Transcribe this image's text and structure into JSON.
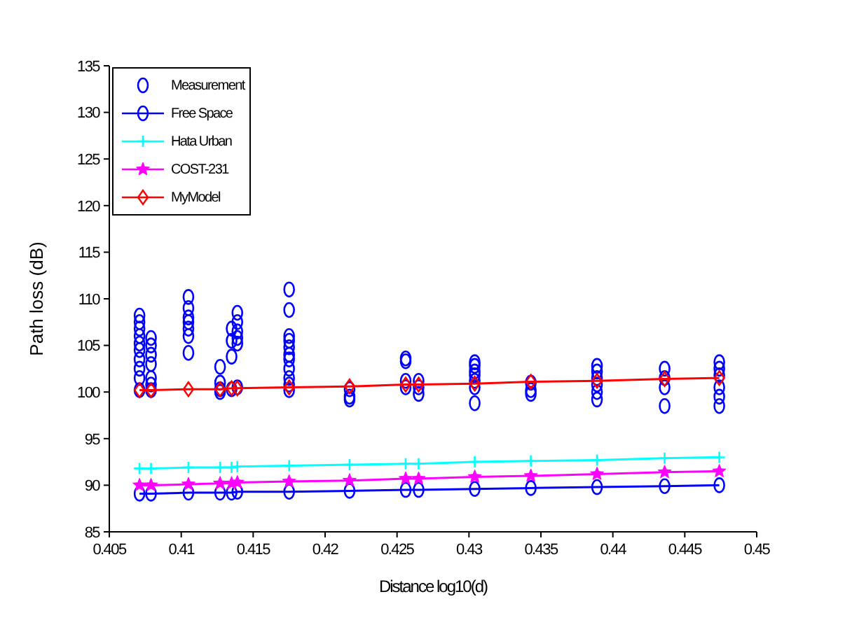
{
  "chart_data": {
    "type": "line",
    "xlabel": "Distance log10(d)",
    "ylabel": "Path loss (dB)",
    "xlim": [
      0.405,
      0.45
    ],
    "xticks": [
      0.405,
      0.41,
      0.415,
      0.42,
      0.425,
      0.43,
      0.435,
      0.44,
      0.445,
      0.45
    ],
    "ylim": [
      85,
      135
    ],
    "yticks": [
      85,
      90,
      95,
      100,
      105,
      110,
      115,
      120,
      125,
      130,
      135
    ],
    "grid": false,
    "legend": "top left",
    "series": [
      {
        "name": "Measurement",
        "type": "scatter",
        "marker": "circle",
        "color": "#0000ff",
        "x": [
          0.4071,
          0.4071,
          0.4071,
          0.4071,
          0.4071,
          0.4071,
          0.4071,
          0.4071,
          0.4071,
          0.4071,
          0.4079,
          0.4079,
          0.4079,
          0.4079,
          0.4079,
          0.4079,
          0.4079,
          0.4105,
          0.4105,
          0.4105,
          0.4105,
          0.4105,
          0.4105,
          0.4105,
          0.4127,
          0.4127,
          0.4127,
          0.4127,
          0.4135,
          0.4135,
          0.4135,
          0.4135,
          0.4139,
          0.4139,
          0.4139,
          0.4139,
          0.4139,
          0.4139,
          0.4175,
          0.4175,
          0.4175,
          0.4175,
          0.4175,
          0.4175,
          0.4175,
          0.4175,
          0.4175,
          0.4175,
          0.4175,
          0.4217,
          0.4217,
          0.4217,
          0.4256,
          0.4256,
          0.4256,
          0.4256,
          0.4265,
          0.4265,
          0.4265,
          0.4304,
          0.4304,
          0.4304,
          0.4304,
          0.4304,
          0.4304,
          0.4304,
          0.4343,
          0.4343,
          0.4343,
          0.4389,
          0.4389,
          0.4389,
          0.4389,
          0.4389,
          0.4389,
          0.4436,
          0.4436,
          0.4436,
          0.4436,
          0.4474,
          0.4474,
          0.4474,
          0.4474,
          0.4474,
          0.4474
        ],
        "values": [
          108.2,
          107.5,
          106.8,
          106,
          105.2,
          104.5,
          103.5,
          102.5,
          101.5,
          100.2,
          105.8,
          105,
          104,
          103,
          101.5,
          100.8,
          100.2,
          110.2,
          109,
          108,
          107.5,
          106.8,
          106,
          104.2,
          102.7,
          101,
          100.3,
          100,
          106.8,
          105.5,
          103.8,
          100.3,
          108.5,
          107.5,
          106.5,
          105.8,
          105.2,
          100.5,
          111,
          108.8,
          106,
          105.5,
          104.8,
          104,
          103.5,
          102.5,
          101.5,
          100.8,
          100.2,
          100.3,
          99.5,
          99.2,
          103.6,
          103.3,
          101.2,
          100.5,
          101.2,
          100.5,
          99.8,
          103.2,
          102.8,
          102.2,
          101.8,
          101.2,
          100.5,
          98.8,
          101,
          100.2,
          99.8,
          102.8,
          102.2,
          101.5,
          100.8,
          100,
          99.2,
          102.5,
          101.5,
          100.5,
          98.5,
          103.2,
          102.5,
          101.8,
          100.5,
          99.5,
          98.5
        ]
      },
      {
        "name": "Free Space",
        "marker": "circle",
        "color": "#0000ff",
        "x": [
          0.4071,
          0.4079,
          0.4105,
          0.4127,
          0.4135,
          0.4139,
          0.4175,
          0.4217,
          0.4256,
          0.4265,
          0.4304,
          0.4343,
          0.4389,
          0.4436,
          0.4474
        ],
        "values": [
          89.1,
          89.1,
          89.2,
          89.2,
          89.2,
          89.3,
          89.3,
          89.4,
          89.5,
          89.5,
          89.6,
          89.7,
          89.8,
          89.9,
          90.0
        ]
      },
      {
        "name": "Hata Urban",
        "marker": "cross",
        "color": "#00ffff",
        "x": [
          0.4071,
          0.4079,
          0.4105,
          0.4127,
          0.4135,
          0.4139,
          0.4175,
          0.4217,
          0.4256,
          0.4265,
          0.4304,
          0.4343,
          0.4389,
          0.4436,
          0.4474
        ],
        "values": [
          91.8,
          91.8,
          91.9,
          91.9,
          91.9,
          92.0,
          92.1,
          92.2,
          92.3,
          92.3,
          92.5,
          92.6,
          92.7,
          92.9,
          93.0
        ]
      },
      {
        "name": "COST-231",
        "marker": "star",
        "color": "#ff00ff",
        "x": [
          0.4071,
          0.4079,
          0.4105,
          0.4127,
          0.4135,
          0.4139,
          0.4175,
          0.4217,
          0.4256,
          0.4265,
          0.4304,
          0.4343,
          0.4389,
          0.4436,
          0.4474
        ],
        "values": [
          90.0,
          90.0,
          90.1,
          90.2,
          90.2,
          90.3,
          90.4,
          90.5,
          90.7,
          90.7,
          90.9,
          91.0,
          91.2,
          91.4,
          91.5
        ]
      },
      {
        "name": "MyModel",
        "marker": "diamond",
        "color": "#ff0000",
        "x": [
          0.4071,
          0.4079,
          0.4105,
          0.4127,
          0.4135,
          0.4139,
          0.4175,
          0.4217,
          0.4256,
          0.4265,
          0.4304,
          0.4343,
          0.4389,
          0.4436,
          0.4474
        ],
        "values": [
          100.2,
          100.2,
          100.3,
          100.3,
          100.4,
          100.4,
          100.5,
          100.6,
          100.8,
          100.8,
          100.9,
          101.1,
          101.2,
          101.4,
          101.5
        ]
      }
    ]
  }
}
